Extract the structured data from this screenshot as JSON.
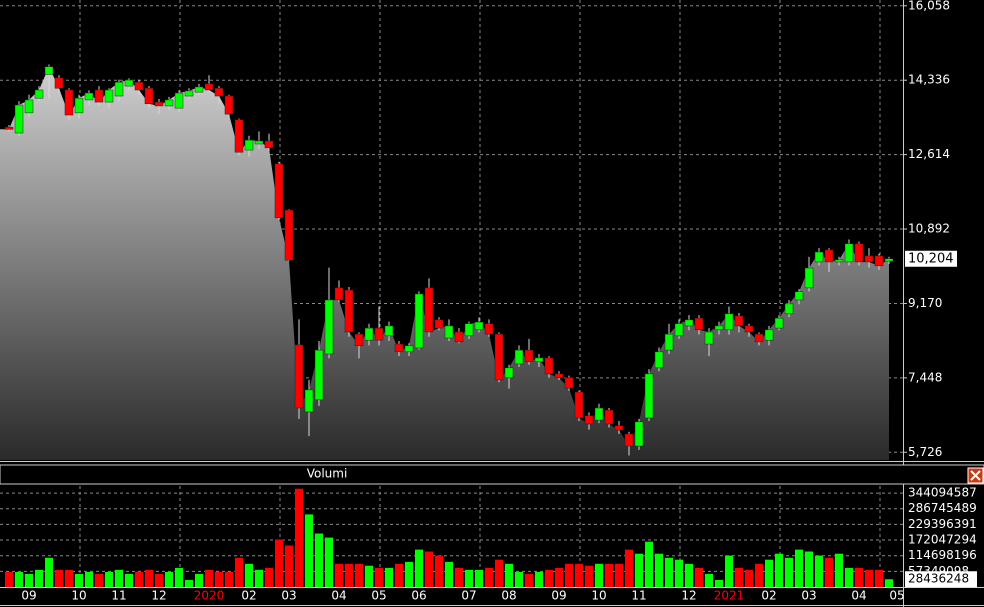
{
  "chart_data": {
    "type": "candlestick",
    "up_color": "#00ff00",
    "down_color": "#ff0000",
    "year_label_color": "#ff0000",
    "ylim": [
      5547,
      16192
    ],
    "yticks": [
      {
        "value": 5726,
        "label": "5,726"
      },
      {
        "value": 7448,
        "label": "7,448"
      },
      {
        "value": 9170,
        "label": "9,170"
      },
      {
        "value": 10892,
        "label": "10,892"
      },
      {
        "value": 12614,
        "label": "12,614"
      },
      {
        "value": 14336,
        "label": "14,336"
      },
      {
        "value": 16058,
        "label": "16,058"
      }
    ],
    "last_label": "10,204",
    "volume_title": "Volumi",
    "volume_ylim": [
      0,
      370000000
    ],
    "volume_yticks": [
      57349098,
      114698196,
      172047294,
      229396391,
      286745489,
      344094587
    ],
    "grid": true,
    "categories": [
      null,
      null,
      "09",
      null,
      null,
      null,
      null,
      "10",
      null,
      null,
      null,
      "11",
      null,
      null,
      null,
      "12",
      null,
      null,
      null,
      null,
      "2020",
      null,
      null,
      null,
      "02",
      null,
      null,
      null,
      "03",
      null,
      null,
      null,
      null,
      "04",
      null,
      null,
      null,
      "05",
      null,
      null,
      null,
      "06",
      null,
      null,
      null,
      null,
      "07",
      null,
      null,
      null,
      "08",
      null,
      null,
      null,
      null,
      "09",
      null,
      null,
      null,
      "10",
      null,
      null,
      null,
      "11",
      null,
      null,
      null,
      null,
      "12",
      null,
      null,
      null,
      "2021",
      null,
      null,
      null,
      "02",
      null,
      null,
      null,
      "03",
      null,
      null,
      null,
      null,
      "04",
      null,
      null,
      "05"
    ],
    "open": [
      13250,
      13114,
      13580,
      13920,
      14470,
      14390,
      14110,
      13580,
      13880,
      14110,
      13830,
      13970,
      14200,
      14290,
      14150,
      13830,
      13740,
      13690,
      13970,
      14060,
      14250,
      14150,
      13970,
      13420,
      12720,
      12860,
      12930,
      12400,
      11330,
      8210,
      6660,
      6940,
      8000,
      9530,
      9480,
      8460,
      8320,
      8600,
      8420,
      8230,
      8050,
      8140,
      9530,
      8790,
      8370,
      8510,
      8420,
      8560,
      8700,
      8460,
      7450,
      7770,
      8090,
      7820,
      7910,
      7540,
      7450,
      7120,
      6570,
      6470,
      6700,
      6340,
      6150,
      5870,
      6520,
      7680,
      8090,
      8420,
      8650,
      8830,
      8230,
      8560,
      8560,
      8880,
      8650,
      8460,
      8320,
      8600,
      8930,
      9250,
      9530,
      10130,
      10410,
      10130,
      10130,
      10550,
      10270,
      10270,
      10150
    ],
    "high": [
      13300,
      13850,
      14000,
      14200,
      14700,
      14450,
      14150,
      14000,
      14100,
      14200,
      14150,
      14350,
      14380,
      14350,
      14200,
      13900,
      13950,
      14100,
      14150,
      14250,
      14450,
      14200,
      14000,
      13450,
      13050,
      13150,
      13100,
      12450,
      11350,
      8800,
      7400,
      8300,
      10000,
      9700,
      9550,
      8500,
      8700,
      9100,
      8750,
      8300,
      8250,
      9450,
      9750,
      8850,
      8800,
      8600,
      8750,
      8850,
      8800,
      8500,
      7750,
      8200,
      8350,
      8000,
      7950,
      7600,
      7500,
      7150,
      6650,
      6850,
      6750,
      6450,
      6200,
      6500,
      7650,
      8150,
      8700,
      8800,
      8900,
      8900,
      8600,
      8750,
      9100,
      8950,
      8700,
      8500,
      8650,
      8900,
      9250,
      9500,
      10250,
      10450,
      10450,
      10250,
      10650,
      10600,
      10450,
      10320,
      10250
    ],
    "low": [
      13150,
      13050,
      13500,
      13850,
      13900,
      14050,
      13400,
      13450,
      13750,
      13750,
      13700,
      13850,
      14100,
      14000,
      13700,
      13550,
      13650,
      13600,
      13900,
      14000,
      14050,
      13800,
      13480,
      12600,
      12570,
      12750,
      12700,
      11100,
      10150,
      6500,
      6100,
      6800,
      7900,
      9200,
      8400,
      7900,
      8200,
      8200,
      8300,
      7950,
      7950,
      8100,
      8400,
      8550,
      8300,
      8250,
      8350,
      8500,
      8400,
      7350,
      7200,
      7700,
      7750,
      7700,
      7450,
      7400,
      7150,
      6450,
      6250,
      6400,
      6300,
      6150,
      5650,
      5780,
      6450,
      7600,
      8000,
      8350,
      8550,
      8450,
      7950,
      8450,
      8450,
      8500,
      8400,
      8200,
      8200,
      8550,
      8850,
      9150,
      9450,
      10050,
      9900,
      10050,
      10050,
      10050,
      10000,
      9950,
      10080
    ],
    "close": [
      13200,
      13762,
      13880,
      14110,
      14650,
      14150,
      13530,
      13920,
      14040,
      13830,
      14110,
      14290,
      14340,
      14110,
      13790,
      13740,
      13880,
      14040,
      14090,
      14180,
      14110,
      13970,
      13550,
      12670,
      12950,
      12930,
      12770,
      11150,
      10170,
      6750,
      7170,
      8090,
      9250,
      9250,
      8510,
      8190,
      8600,
      8320,
      8650,
      8050,
      8190,
      9390,
      8510,
      8600,
      8650,
      8280,
      8700,
      8740,
      8460,
      7400,
      7680,
      8090,
      7820,
      7910,
      7540,
      7450,
      7210,
      6520,
      6380,
      6750,
      6380,
      6240,
      5870,
      6430,
      7540,
      8050,
      8460,
      8700,
      8790,
      8560,
      8510,
      8650,
      8930,
      8650,
      8510,
      8280,
      8560,
      8830,
      9160,
      9440,
      9990,
      10360,
      10130,
      10180,
      10550,
      10130,
      10130,
      10040,
      10204
    ],
    "volume": [
      55000000,
      55000000,
      48000000,
      63000000,
      107000000,
      63000000,
      63000000,
      48000000,
      55000000,
      48000000,
      55000000,
      63000000,
      48000000,
      55000000,
      63000000,
      48000000,
      55000000,
      70000000,
      26000000,
      48000000,
      63000000,
      55000000,
      55000000,
      107000000,
      85000000,
      63000000,
      70000000,
      174000000,
      152000000,
      360000000,
      266000000,
      196000000,
      181000000,
      85000000,
      85000000,
      85000000,
      78000000,
      70000000,
      70000000,
      85000000,
      92000000,
      137000000,
      130000000,
      115000000,
      92000000,
      70000000,
      63000000,
      63000000,
      70000000,
      100000000,
      85000000,
      55000000,
      48000000,
      55000000,
      63000000,
      70000000,
      85000000,
      85000000,
      78000000,
      85000000,
      85000000,
      85000000,
      137000000,
      122000000,
      166000000,
      122000000,
      107000000,
      100000000,
      85000000,
      70000000,
      48000000,
      26000000,
      115000000,
      70000000,
      63000000,
      85000000,
      100000000,
      122000000,
      107000000,
      137000000,
      130000000,
      115000000,
      107000000,
      122000000,
      70000000,
      70000000,
      63000000,
      63000000,
      28436248
    ]
  }
}
